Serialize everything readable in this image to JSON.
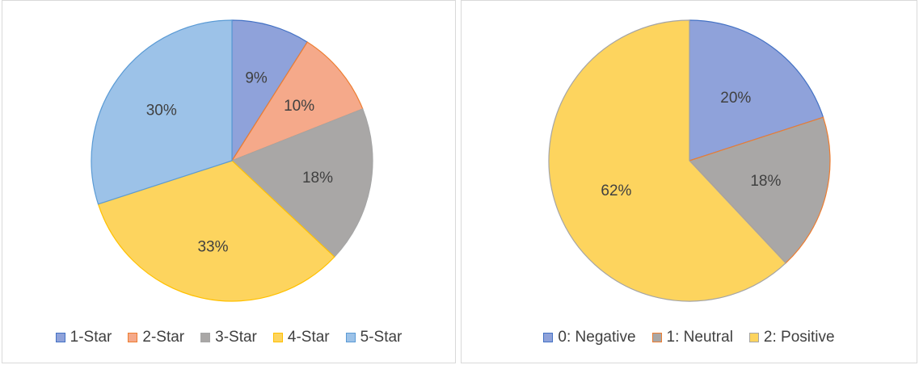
{
  "chart_data": [
    {
      "type": "pie",
      "categories": [
        "1-Star",
        "2-Star",
        "3-Star",
        "4-Star",
        "5-Star"
      ],
      "values": [
        9,
        10,
        18,
        33,
        30
      ],
      "labels": [
        "9%",
        "10%",
        "18%",
        "33%",
        "30%"
      ],
      "colors": [
        "#8fa2da",
        "#f5a98a",
        "#a9a7a6",
        "#fdd45e",
        "#9cc2e8"
      ],
      "edge_colors": [
        "#4472c4",
        "#ed7d31",
        "#a5a5a5",
        "#ffc000",
        "#5b9bd5"
      ],
      "legend_position": "bottom"
    },
    {
      "type": "pie",
      "categories": [
        "0: Negative",
        "1: Neutral",
        "2: Positive"
      ],
      "values": [
        20,
        18,
        62
      ],
      "labels": [
        "20%",
        "18%",
        "62%"
      ],
      "colors": [
        "#8fa2da",
        "#a9a7a6",
        "#fdd45e"
      ],
      "edge_colors": [
        "#4472c4",
        "#ed7d31",
        "#a5a5a5"
      ],
      "legend_position": "bottom"
    }
  ]
}
